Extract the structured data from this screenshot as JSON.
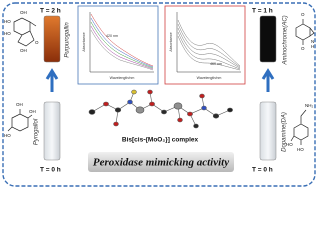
{
  "left": {
    "top": {
      "time": "T = 2 h",
      "name": "Purpurogallin",
      "labels": [
        "HO",
        "OH",
        "HO",
        "O",
        "OH"
      ]
    },
    "bottom": {
      "time": "T = 0 h",
      "name": "Pyrogallol",
      "labels": [
        "OH",
        "OH",
        "HO"
      ]
    }
  },
  "right": {
    "top": {
      "time": "T = 1 h",
      "name": "Aminochrome(AC)",
      "labels": [
        "O",
        "O",
        "N",
        "H"
      ]
    },
    "bottom": {
      "time": "T = 0 h",
      "name": "Dopamine(DA)",
      "labels": [
        "NH₂",
        "HO",
        "HO"
      ]
    }
  },
  "spectra": [
    {
      "y_label": "Absorbance",
      "x_label": "Wavelength/nm",
      "annotation": "420 nm"
    },
    {
      "y_label": "Absorbance",
      "x_label": "Wavelength/nm",
      "annotation": "460 nm"
    }
  ],
  "complex": "Bis[cis-{MoO₂}] complex",
  "banner": "Peroxidase mimicking activity"
}
